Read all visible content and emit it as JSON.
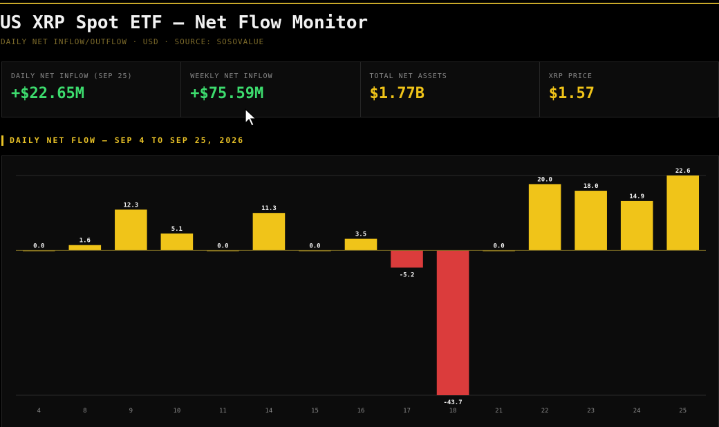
{
  "header": {
    "title": "US XRP Spot ETF — Net Flow Monitor",
    "subtitle": "DAILY NET INFLOW/OUTFLOW · USD · SOURCE: SOSOVALUE"
  },
  "stats": [
    {
      "label": "DAILY NET INFLOW (SEP 25)",
      "value": "+$22.65M",
      "color": "#3ddc6e"
    },
    {
      "label": "WEEKLY NET INFLOW",
      "value": "+$75.59M",
      "color": "#3ddc6e"
    },
    {
      "label": "TOTAL NET ASSETS",
      "value": "$1.77B",
      "color": "#f0c419"
    },
    {
      "label": "XRP PRICE",
      "value": "$1.57",
      "color": "#f0c419"
    }
  ],
  "section_title": "DAILY NET FLOW — SEP 4 TO SEP 25, 2026",
  "chart_data": {
    "type": "bar",
    "title": "",
    "xlabel": "",
    "ylabel": "",
    "categories": [
      "4",
      "8",
      "9",
      "10",
      "11",
      "14",
      "15",
      "16",
      "17",
      "18",
      "21",
      "22",
      "23",
      "24",
      "25"
    ],
    "series": [
      {
        "values": [
          0.0,
          1.6,
          12.3,
          5.1,
          0.0,
          11.3,
          0.0,
          3.5,
          -5.2,
          -43.7,
          0.0,
          20.0,
          18.0,
          14.9,
          22.6
        ]
      }
    ],
    "data_labels": [
      "0.0",
      "1.6",
      "12.3",
      "5.1",
      "0.0",
      "11.3",
      "0.0",
      "3.5",
      "-5.2",
      "-43.7",
      "0.0",
      "20.0",
      "18.0",
      "14.9",
      "22.6"
    ],
    "ylim": [
      -43.7,
      22.6
    ],
    "gridlines": [
      22.6,
      -43.7
    ],
    "grid": true,
    "colors": {
      "positive": "#f0c419",
      "negative": "#db3c3c",
      "zero_line": "#7a6a23",
      "grid": "#2a2a2a"
    }
  }
}
